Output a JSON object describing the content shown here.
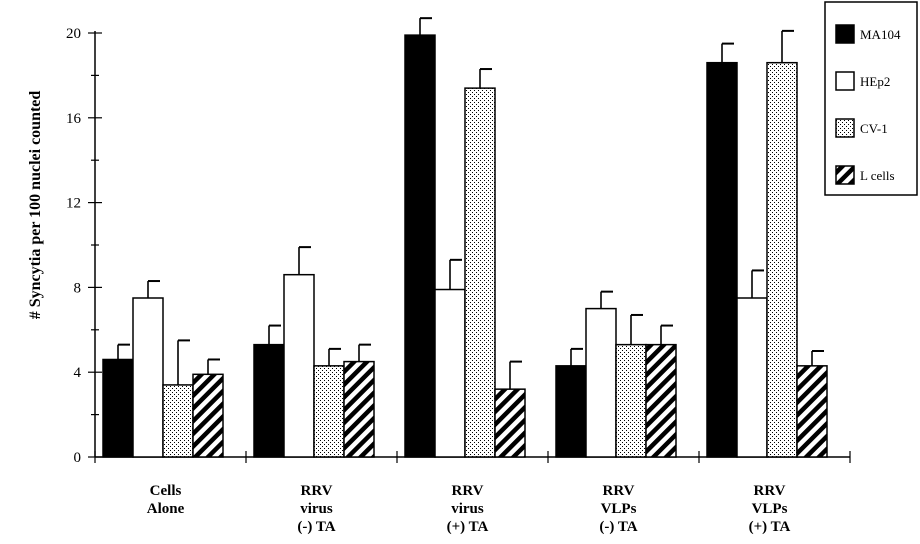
{
  "chart_data": {
    "type": "bar",
    "ylabel": "# Syncytia per 100 nuclei counted",
    "xlabel": "",
    "ylim": [
      0,
      20
    ],
    "yticks": [
      "0",
      "4",
      "8",
      "12",
      "16",
      "20"
    ],
    "categories": [
      [
        "Cells",
        "Alone"
      ],
      [
        "RRV",
        "virus",
        "(-) TA"
      ],
      [
        "RRV",
        "virus",
        "(+) TA"
      ],
      [
        "RRV",
        "VLPs",
        "(-) TA"
      ],
      [
        "RRV",
        "VLPs",
        "(+) TA"
      ]
    ],
    "series": [
      {
        "name": "MA104",
        "pattern": "solid-black",
        "values": [
          4.6,
          5.3,
          19.9,
          4.3,
          18.6
        ],
        "errors": [
          0.7,
          0.9,
          0.8,
          0.8,
          0.9
        ]
      },
      {
        "name": "HEp2",
        "pattern": "white",
        "values": [
          7.5,
          8.6,
          7.9,
          7.0,
          7.5
        ],
        "errors": [
          0.8,
          1.3,
          1.4,
          0.8,
          1.3
        ]
      },
      {
        "name": "CV-1",
        "pattern": "stipple",
        "values": [
          3.4,
          4.3,
          17.4,
          5.3,
          18.6
        ],
        "errors": [
          2.1,
          0.8,
          0.9,
          1.4,
          1.5
        ]
      },
      {
        "name": "L cells",
        "pattern": "diagonal-hatch",
        "values": [
          3.9,
          4.5,
          3.2,
          5.3,
          4.3
        ],
        "errors": [
          0.7,
          0.8,
          1.3,
          0.9,
          0.7
        ]
      }
    ],
    "grid": false,
    "legend": "top-right"
  }
}
